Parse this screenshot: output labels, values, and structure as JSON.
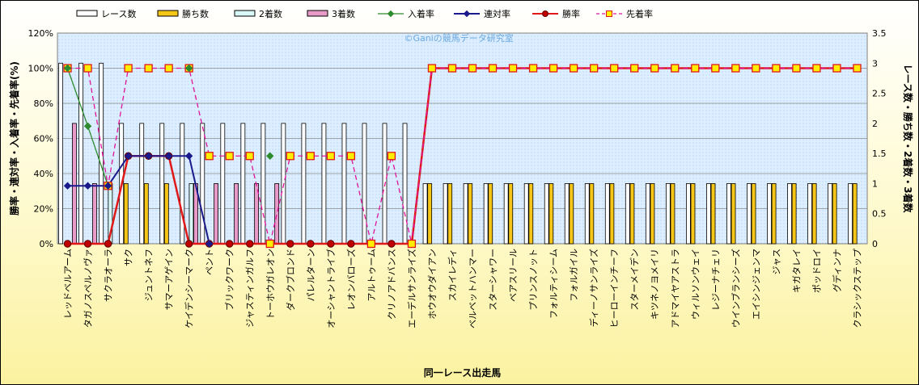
{
  "chart_data": {
    "type": "bar",
    "xlabel": "同一レース出走馬",
    "ylabel_left": "勝率・連対率・入着率・先着率(%)",
    "ylabel_right": "レース数・勝ち数・2着数・3着数",
    "ylim_left": [
      0,
      120
    ],
    "ylim_right": [
      0,
      3.5
    ],
    "yticks_left": [
      "0%",
      "20%",
      "40%",
      "60%",
      "80%",
      "100%",
      "120%"
    ],
    "yticks_right": [
      "0",
      "0.5",
      "1",
      "1.5",
      "2",
      "2.5",
      "3",
      "3.5"
    ],
    "watermark": "©Ganiの競馬データ研究室",
    "grid": true,
    "legend_position": "top",
    "categories": [
      "レッドベルアーム",
      "タガノスペルノヴァ",
      "サクラオーラ",
      "サク",
      "ジュントネフ",
      "サマーアゲイン",
      "ケイデンシーマーク",
      "ペント",
      "ブリックワーク",
      "ジャスティンガルフ",
      "トーホウガレオン",
      "ダークブロンド",
      "パレルターン",
      "オーシャントライブ",
      "レオンバローズ",
      "アルトゥーム",
      "クリノアドバンス",
      "エーデルサンライズ",
      "ホウオウダイアン",
      "スカイレディ",
      "ベルベットハンマー",
      "スターシャワー",
      "ベアスリール",
      "プリンスノット",
      "フォルティシーム",
      "フォルガイル",
      "ディーノサンライズ",
      "ヒーローインチーフ",
      "スターメイデン",
      "キツネノヨメイリ",
      "アドマイヤアストラ",
      "ウィルソンウェイ",
      "レジーナチェリ",
      "ウインブランシーズ",
      "エイシンジェンマ",
      "ジャス",
      "キガタレイ",
      "ポッドロイ",
      "グディンナ",
      "クラシックステップ"
    ],
    "series": [
      {
        "name": "レース数",
        "axis": "right",
        "color": "#ffffff",
        "values": [
          3,
          3,
          3,
          2,
          2,
          2,
          2,
          2,
          2,
          2,
          2,
          2,
          2,
          2,
          2,
          2,
          2,
          2,
          1,
          1,
          1,
          1,
          1,
          1,
          1,
          1,
          1,
          1,
          1,
          1,
          1,
          1,
          1,
          1,
          1,
          1,
          1,
          1,
          1,
          1
        ]
      },
      {
        "name": "勝ち数",
        "axis": "right",
        "color": "#f5c518",
        "values": [
          0,
          0,
          0,
          1,
          1,
          1,
          0,
          0,
          0,
          0,
          0,
          0,
          0,
          0,
          0,
          0,
          0,
          0,
          1,
          1,
          1,
          1,
          1,
          1,
          1,
          1,
          1,
          1,
          1,
          1,
          1,
          1,
          1,
          1,
          1,
          1,
          1,
          1,
          1,
          1
        ]
      },
      {
        "name": "2着数",
        "axis": "right",
        "color": "#d8f8f8",
        "values": [
          0,
          0,
          1,
          0,
          0,
          0,
          1,
          0,
          0,
          0,
          0,
          0,
          0,
          0,
          0,
          0,
          0,
          0,
          0,
          0,
          0,
          0,
          0,
          0,
          0,
          0,
          0,
          0,
          0,
          0,
          0,
          0,
          0,
          0,
          0,
          0,
          0,
          0,
          0,
          0
        ]
      },
      {
        "name": "3着数",
        "axis": "right",
        "color": "#e89ac8",
        "values": [
          2,
          1,
          0,
          0,
          0,
          0,
          1,
          1,
          1,
          1,
          1,
          0,
          0,
          0,
          0,
          0,
          0,
          0,
          0,
          0,
          0,
          0,
          0,
          0,
          0,
          0,
          0,
          0,
          0,
          0,
          0,
          0,
          0,
          0,
          0,
          0,
          0,
          0,
          0,
          0
        ]
      },
      {
        "name": "入着率",
        "axis": "left",
        "color": "#2e8b2e",
        "values": [
          100,
          67,
          33,
          null,
          null,
          null,
          100,
          null,
          null,
          null,
          50,
          null,
          null,
          null,
          null,
          null,
          null,
          null,
          null,
          null,
          null,
          null,
          null,
          null,
          null,
          null,
          null,
          null,
          null,
          null,
          null,
          null,
          null,
          null,
          null,
          null,
          null,
          null,
          null,
          null
        ]
      },
      {
        "name": "連対率",
        "axis": "left",
        "color": "#1a1a8c",
        "values": [
          33,
          33,
          33,
          50,
          50,
          50,
          50,
          0,
          null,
          null,
          null,
          null,
          null,
          null,
          null,
          null,
          null,
          null,
          null,
          null,
          null,
          null,
          null,
          null,
          null,
          null,
          null,
          null,
          null,
          null,
          null,
          null,
          null,
          null,
          null,
          null,
          null,
          null,
          null,
          null
        ]
      },
      {
        "name": "勝率",
        "axis": "left",
        "color": "#e01818",
        "values": [
          0,
          0,
          0,
          50,
          50,
          50,
          0,
          0,
          0,
          0,
          0,
          0,
          0,
          0,
          0,
          0,
          0,
          0,
          100,
          100,
          100,
          100,
          100,
          100,
          100,
          100,
          100,
          100,
          100,
          100,
          100,
          100,
          100,
          100,
          100,
          100,
          100,
          100,
          100,
          100
        ]
      },
      {
        "name": "先着率",
        "axis": "left",
        "color": "#e0149c",
        "values": [
          100,
          100,
          33,
          100,
          100,
          100,
          100,
          50,
          50,
          50,
          0,
          50,
          50,
          50,
          50,
          0,
          50,
          0,
          100,
          100,
          100,
          100,
          100,
          100,
          100,
          100,
          100,
          100,
          100,
          100,
          100,
          100,
          100,
          100,
          100,
          100,
          100,
          100,
          100,
          100
        ]
      }
    ]
  }
}
